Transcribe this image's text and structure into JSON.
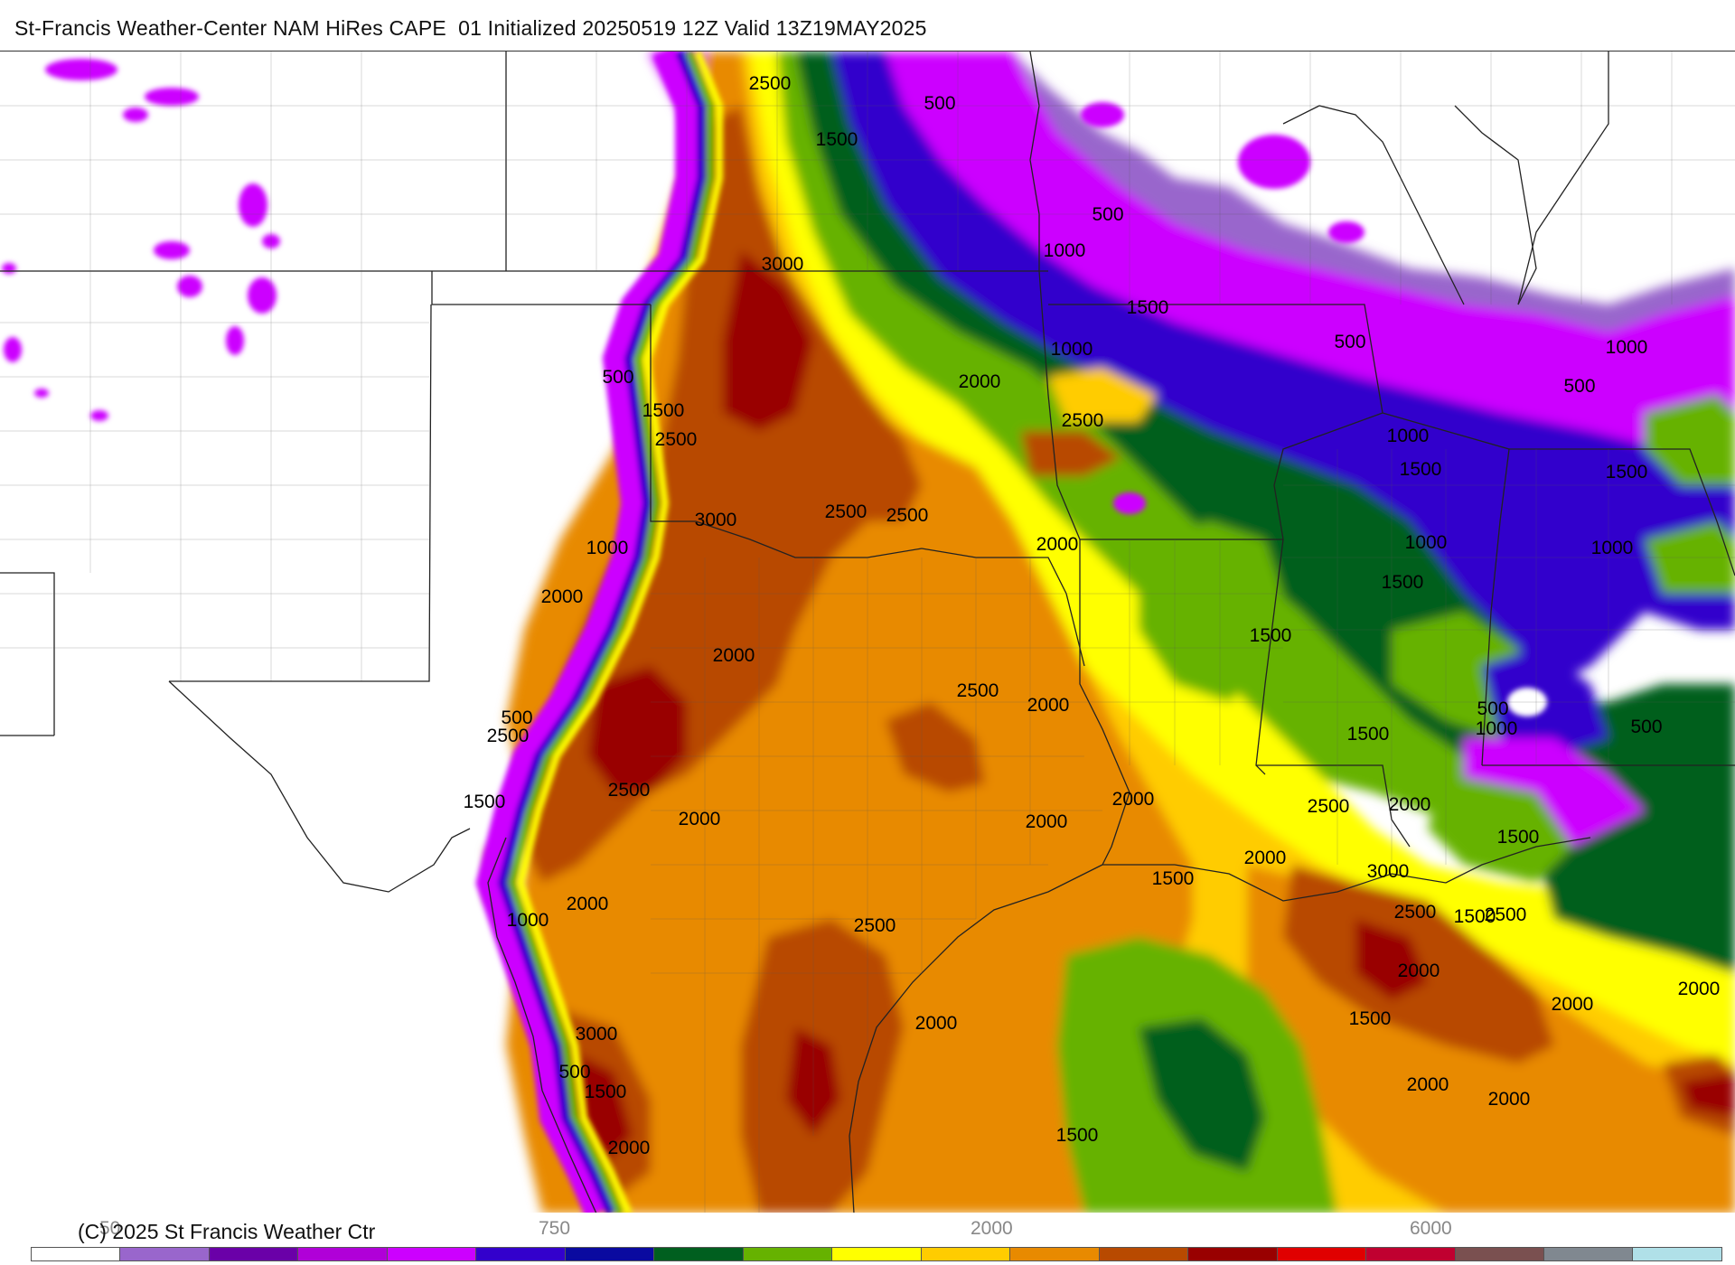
{
  "title": "St-Francis Weather-Center NAM HiRes CAPE  01 Initialized 20250519 12Z Valid 13Z19MAY2025",
  "copyright": "(C) 2025 St Francis Weather Ctr",
  "colorbar": {
    "tick_labels": [
      "50",
      "750",
      "2000",
      "6000"
    ],
    "colors": [
      "#ffffff",
      "#9966cc",
      "#6a00a8",
      "#b000d8",
      "#cc00ff",
      "#3300cc",
      "#0a0aa0",
      "#005f1f",
      "#66b200",
      "#ffff00",
      "#ffcc00",
      "#e88a00",
      "#b84a00",
      "#990000",
      "#e00000",
      "#c00030",
      "#7a5050",
      "#808890",
      "#b0e0e8"
    ]
  },
  "contour_labels": [
    {
      "text": "2500",
      "x": "2500a"
    },
    {
      "text": "1500",
      "x": "1500a"
    },
    {
      "text": "500",
      "x": "500a"
    },
    {
      "text": "3000",
      "x": "3000a"
    },
    {
      "text": "500",
      "x": "500b"
    },
    {
      "text": "1000",
      "x": "1000a"
    },
    {
      "text": "1500",
      "x": "1500b"
    },
    {
      "text": "1000",
      "x": "1000b"
    },
    {
      "text": "2000",
      "x": "2000a"
    },
    {
      "text": "2500",
      "x": "2500b"
    },
    {
      "text": "500",
      "x": "500c"
    },
    {
      "text": "1500",
      "x": "1500c"
    },
    {
      "text": "2500",
      "x": "2500c"
    },
    {
      "text": "3000",
      "x": "3000b"
    },
    {
      "text": "2500",
      "x": "2500d"
    },
    {
      "text": "2500",
      "x": "2500e"
    },
    {
      "text": "1000",
      "x": "1000c"
    },
    {
      "text": "2000",
      "x": "2000b"
    },
    {
      "text": "2000",
      "x": "2000c"
    },
    {
      "text": "2000",
      "x": "2000d"
    },
    {
      "text": "500",
      "x": "500d"
    },
    {
      "text": "2500",
      "x": "2500f"
    },
    {
      "text": "1500",
      "x": "1500d"
    },
    {
      "text": "2500",
      "x": "2500g"
    },
    {
      "text": "2000",
      "x": "2000e"
    },
    {
      "text": "2500",
      "x": "2500h"
    },
    {
      "text": "2000",
      "x": "2000f"
    },
    {
      "text": "2000",
      "x": "2000g"
    },
    {
      "text": "2000",
      "x": "2000h"
    },
    {
      "text": "1500",
      "x": "1500e"
    },
    {
      "text": "1000",
      "x": "1000d"
    },
    {
      "text": "2000",
      "x": "2000i"
    },
    {
      "text": "2500",
      "x": "2500i"
    },
    {
      "text": "3000",
      "x": "3000c"
    },
    {
      "text": "500",
      "x": "500e"
    },
    {
      "text": "1500",
      "x": "1500f"
    },
    {
      "text": "2000",
      "x": "2000j"
    },
    {
      "text": "2000",
      "x": "2000k"
    },
    {
      "text": "1500",
      "x": "1500g"
    },
    {
      "text": "1500",
      "x": "1500h"
    },
    {
      "text": "1500",
      "x": "1500i"
    },
    {
      "text": "1000",
      "x": "1000e"
    },
    {
      "text": "1000",
      "x": "1000f"
    },
    {
      "text": "1500",
      "x": "1500j"
    },
    {
      "text": "500",
      "x": "500f"
    },
    {
      "text": "1000",
      "x": "1000g"
    },
    {
      "text": "500",
      "x": "500g"
    },
    {
      "text": "1000",
      "x": "1000h"
    },
    {
      "text": "1500",
      "x": "1500k"
    },
    {
      "text": "1500",
      "x": "1500l"
    },
    {
      "text": "2500",
      "x": "2500j"
    },
    {
      "text": "2000",
      "x": "2000l"
    },
    {
      "text": "3000",
      "x": "3000d"
    },
    {
      "text": "2500",
      "x": "2500k"
    },
    {
      "text": "2500",
      "x": "2500l"
    },
    {
      "text": "2000",
      "x": "2000m"
    },
    {
      "text": "1500",
      "x": "1500m"
    },
    {
      "text": "2000",
      "x": "2000n"
    },
    {
      "text": "2000",
      "x": "2000o"
    },
    {
      "text": "2000",
      "x": "2000p"
    },
    {
      "text": "2000",
      "x": "2000q"
    },
    {
      "text": "2000",
      "x": "2000r"
    },
    {
      "text": "1500",
      "x": "1500n"
    },
    {
      "text": "1500",
      "x": "1500o"
    },
    {
      "text": "1000",
      "x": "1000i"
    },
    {
      "text": "500",
      "x": "500h"
    },
    {
      "text": "500",
      "x": "500i"
    }
  ]
}
